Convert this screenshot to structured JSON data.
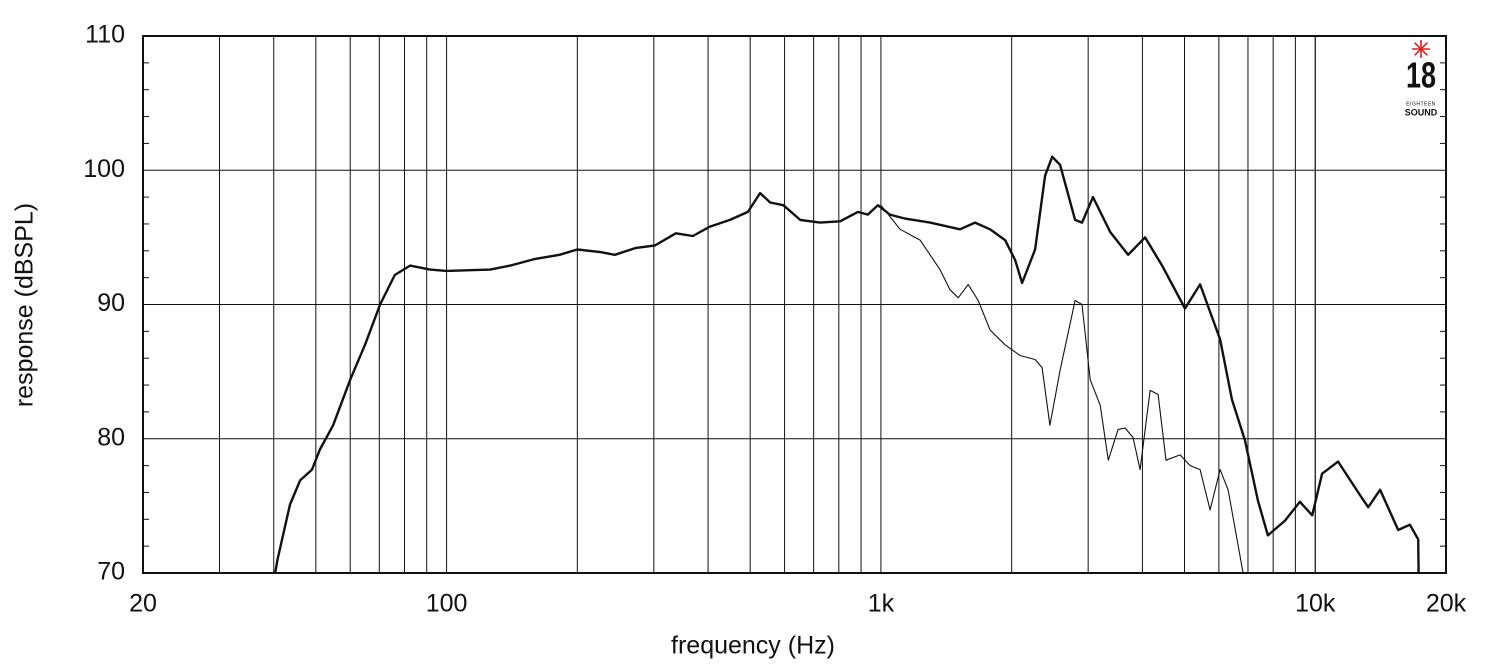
{
  "chart_data": {
    "type": "line",
    "xlabel": "frequency (Hz)",
    "ylabel": "response (dBSPL)",
    "xscale": "log",
    "grid": true,
    "xlim": [
      20,
      20000
    ],
    "ylim": [
      70,
      110
    ],
    "xticks": [
      20,
      100,
      {
        "value": 1000,
        "label": "1k"
      },
      {
        "value": 10000,
        "label": "10k"
      },
      {
        "value": 20000,
        "label": "20k"
      }
    ],
    "x_minor_grid": [
      30,
      40,
      50,
      60,
      70,
      80,
      90,
      200,
      300,
      400,
      500,
      600,
      700,
      800,
      900,
      2000,
      3000,
      4000,
      5000,
      6000,
      7000,
      8000,
      9000,
      10000
    ],
    "yticks": [
      70,
      80,
      90,
      100,
      110
    ],
    "y_minor_ticks": [
      72,
      74,
      76,
      78,
      82,
      84,
      86,
      88,
      92,
      94,
      96,
      98,
      102,
      104,
      106,
      108
    ],
    "series": [
      {
        "color": "#111111",
        "line_width": 2.4,
        "x": [
          40.3,
          40.8,
          43.6,
          46.0,
          49.0,
          51.1,
          54.8,
          60,
          64.9,
          70.3,
          76.0,
          82.4,
          91.6,
          100,
          126,
          140,
          160,
          182,
          200,
          226,
          244,
          272,
          302,
          337,
          369,
          404,
          449,
          494,
          527,
          556,
          596,
          652,
          724,
          806,
          885,
          933,
          984,
          1049,
          1137,
          1297,
          1521,
          1647,
          1784,
          1932,
          2038,
          2114,
          2265,
          2388,
          2479,
          2586,
          2799,
          2904,
          3078,
          3372,
          3708,
          4058,
          4440,
          5012,
          5430,
          6040,
          6430,
          6888,
          7378,
          7780,
          8520,
          9220,
          9840,
          10370,
          11290,
          12680,
          13240,
          14100,
          15520,
          16520,
          17260,
          17300
        ],
        "values": [
          70,
          71.0,
          75.1,
          76.9,
          77.7,
          79.2,
          81.0,
          84.4,
          87.0,
          90.0,
          92.2,
          92.9,
          92.6,
          92.5,
          92.6,
          92.9,
          93.4,
          93.7,
          94.1,
          93.9,
          93.7,
          94.2,
          94.4,
          95.3,
          95.1,
          95.8,
          96.3,
          96.9,
          98.3,
          97.6,
          97.4,
          96.3,
          96.1,
          96.2,
          96.9,
          96.7,
          97.4,
          96.7,
          96.4,
          96.1,
          95.6,
          96.1,
          95.6,
          94.8,
          93.3,
          91.6,
          94.1,
          99.6,
          101.0,
          100.4,
          96.3,
          96.1,
          98.0,
          95.4,
          93.7,
          95.0,
          92.9,
          89.7,
          91.5,
          87.4,
          82.9,
          79.9,
          75.4,
          72.8,
          73.9,
          75.3,
          74.3,
          77.4,
          78.3,
          75.8,
          74.9,
          76.2,
          73.2,
          73.6,
          72.5,
          70
        ]
      },
      {
        "color": "#111111",
        "line_width": 1.1,
        "x": [
          1000,
          1107,
          1231,
          1297,
          1368,
          1442,
          1506,
          1588,
          1675,
          1784,
          1932,
          2090,
          2265,
          2350,
          2450,
          2586,
          2799,
          2904,
          3032,
          3198,
          3338,
          3516,
          3648,
          3806,
          3952,
          4166,
          4348,
          4532,
          4884,
          5150,
          5430,
          5728,
          6040,
          6300,
          6640,
          6820
        ],
        "values": [
          97.4,
          95.6,
          94.8,
          93.7,
          92.6,
          91.1,
          90.5,
          91.5,
          90.3,
          88.1,
          87.0,
          86.2,
          85.9,
          85.3,
          81.0,
          85.1,
          90.3,
          90.0,
          84.4,
          82.5,
          78.4,
          80.7,
          80.8,
          80.1,
          77.7,
          83.6,
          83.3,
          78.4,
          78.8,
          78.0,
          77.7,
          74.7,
          77.7,
          76.2,
          72.1,
          70
        ]
      }
    ],
    "logo": {
      "number": "18",
      "line1": "EIGHTEEN",
      "line2": "SOUND",
      "color": "#e0201c"
    }
  }
}
